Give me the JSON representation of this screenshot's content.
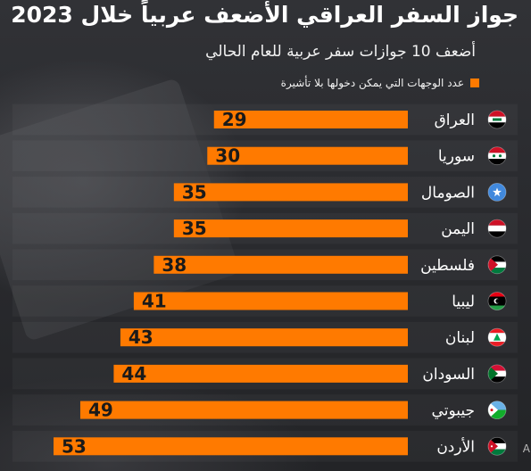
{
  "header": {
    "title": "جواز السفر العراقي الأضعف عربياً خلال 2023",
    "subtitle": "أضعف 10 جوازات سفر عربية للعام الحالي"
  },
  "colors": {
    "bar": "#ff7a00",
    "value_text": "#1a1a1a",
    "label_text": "#ffffff"
  },
  "chart_data": {
    "type": "bar",
    "orientation": "horizontal",
    "direction": "right-to-left",
    "categories": [
      "العراق",
      "سوريا",
      "الصومال",
      "اليمن",
      "فلسطين",
      "ليبيا",
      "لبنان",
      "السودان",
      "جيبوتي",
      "الأردن"
    ],
    "flags": [
      "flag-iraq-icon",
      "flag-syria-icon",
      "flag-somalia-icon",
      "flag-yemen-icon",
      "flag-palestine-icon",
      "flag-libya-icon",
      "flag-lebanon-icon",
      "flag-sudan-icon",
      "flag-djibouti-icon",
      "flag-jordan-icon"
    ],
    "series": [
      {
        "name": "عدد الوجهات التي يمكن دخولها بلا تأشيرة",
        "values": [
          29,
          30,
          35,
          35,
          38,
          41,
          43,
          44,
          49,
          53
        ]
      }
    ],
    "xlim": [
      0,
      53
    ],
    "legend": "top-right",
    "grid": false
  },
  "footer": {
    "cut_letter": "A"
  }
}
